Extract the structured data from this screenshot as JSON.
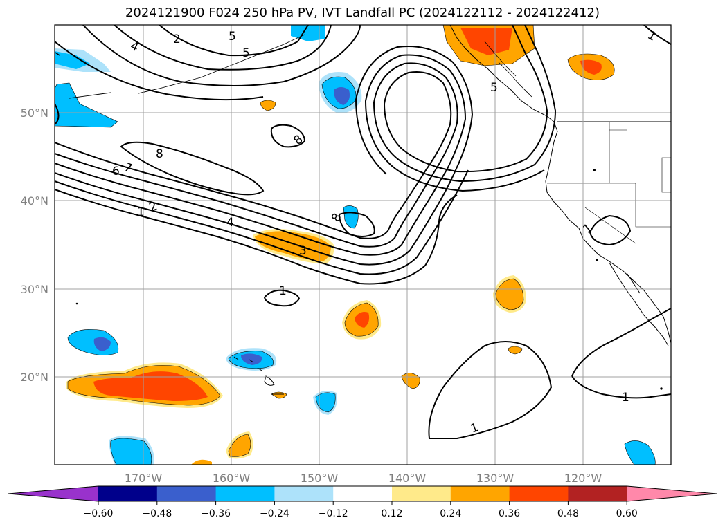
{
  "title": "2024121900 F024 250 hPa PV, IVT Landfall PC (2024122112 - 2024122412)",
  "map": {
    "lat_labels": [
      "50°N",
      "40°N",
      "30°N",
      "20°N"
    ],
    "lon_labels": [
      "170°W",
      "160°W",
      "150°W",
      "140°W",
      "130°W",
      "120°W"
    ],
    "contour_labels": [
      {
        "text": "2"
      },
      {
        "text": "4"
      },
      {
        "text": "5"
      },
      {
        "text": "5"
      },
      {
        "text": "8"
      },
      {
        "text": "8"
      },
      {
        "text": "7"
      },
      {
        "text": "6"
      },
      {
        "text": "1"
      },
      {
        "text": "2"
      },
      {
        "text": "4"
      },
      {
        "text": "3"
      },
      {
        "text": "8"
      },
      {
        "text": "1"
      },
      {
        "text": "1"
      },
      {
        "text": "1"
      },
      {
        "text": "1"
      },
      {
        "text": "5"
      },
      {
        "text": "1"
      }
    ]
  },
  "colorbar": {
    "ticks": [
      "−0.60",
      "−0.48",
      "−0.36",
      "−0.24",
      "−0.12",
      "0.12",
      "0.24",
      "0.36",
      "0.48",
      "0.60"
    ],
    "colors": [
      "#9932cc",
      "#00008b",
      "#3a5fcd",
      "#00bfff",
      "#ade2fa",
      "#ffffff",
      "#ffea8a",
      "#ffa500",
      "#ff4500",
      "#b22222",
      "#ff88aa"
    ]
  },
  "colors": {
    "coast": "#000000",
    "grid": "#a0a0a0",
    "axis_label": "#808080"
  }
}
